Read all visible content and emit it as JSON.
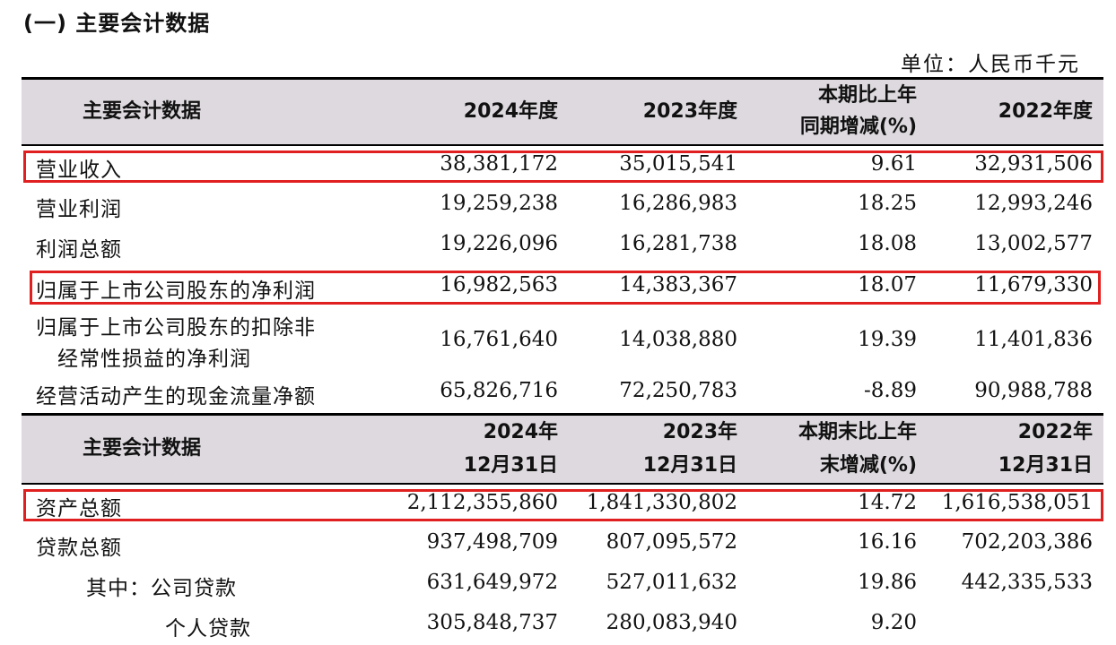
{
  "section_title": "(一) 主要会计数据",
  "unit_note": "单位：人民币千元",
  "header1": {
    "col0": "主要会计数据",
    "col1": "2024年度",
    "col2": "2023年度",
    "col3_line1": "本期比上年",
    "col3_line2": "同期增减(%)",
    "col4": "2022年度"
  },
  "rows1": [
    {
      "label": "营业收入",
      "v2024": "38,381,172",
      "v2023": "35,015,541",
      "change": "9.61",
      "v2022": "32,931,506",
      "highlighted": true
    },
    {
      "label": "营业利润",
      "v2024": "19,259,238",
      "v2023": "16,286,983",
      "change": "18.25",
      "v2022": "12,993,246",
      "highlighted": false
    },
    {
      "label": "利润总额",
      "v2024": "19,226,096",
      "v2023": "16,281,738",
      "change": "18.08",
      "v2022": "13,002,577",
      "highlighted": false
    },
    {
      "label": "归属于上市公司股东的净利润",
      "v2024": "16,982,563",
      "v2023": "14,383,367",
      "change": "18.07",
      "v2022": "11,679,330",
      "highlighted": true
    },
    {
      "label_line1": "归属于上市公司股东的扣除非",
      "label_line2": "经常性损益的净利润",
      "v2024": "16,761,640",
      "v2023": "14,038,880",
      "change": "19.39",
      "v2022": "11,401,836",
      "highlighted": false
    },
    {
      "label": "经营活动产生的现金流量净额",
      "v2024": "65,826,716",
      "v2023": "72,250,783",
      "change": "-8.89",
      "v2022": "90,988,788",
      "highlighted": false
    }
  ],
  "header2": {
    "col0": "主要会计数据",
    "col1_line1": "2024年",
    "col1_line2": "12月31日",
    "col2_line1": "2023年",
    "col2_line2": "12月31日",
    "col3_line1": "本期末比上年",
    "col3_line2": "末增减(%)",
    "col4_line1": "2022年",
    "col4_line2": "12月31日"
  },
  "rows2": [
    {
      "label": "资产总额",
      "v2024": "2,112,355,860",
      "v2023": "1,841,330,802",
      "change": "14.72",
      "v2022": "1,616,538,051",
      "highlighted": true
    },
    {
      "label": "贷款总额",
      "v2024": "937,498,709",
      "v2023": "807,095,572",
      "change": "16.16",
      "v2022": "702,203,386",
      "highlighted": false
    },
    {
      "label": "其中：公司贷款",
      "v2024": "631,649,972",
      "v2023": "527,011,632",
      "change": "19.86",
      "v2022": "442,335,533",
      "highlighted": false
    },
    {
      "label": "个人贷款",
      "v2024": "305,848,737",
      "v2023": "280,083,940",
      "change": "9.20",
      "v2022": "",
      "highlighted": false
    }
  ],
  "colors": {
    "header_bg": "#ddd9de",
    "highlight_border": "#e02020"
  }
}
